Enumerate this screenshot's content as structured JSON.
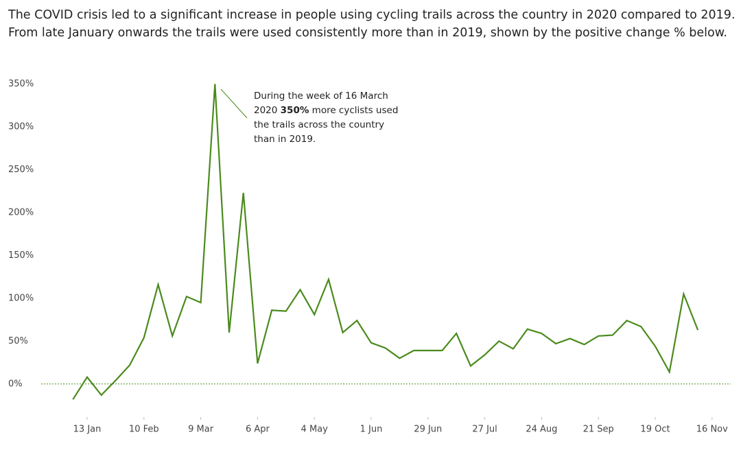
{
  "chart_data": {
    "type": "line",
    "title": "The COVID crisis led to a significant increase in people using cycling trails across the country in 2020 compared to 2019.",
    "subtitle": "From late January onwards the trails were used consistently more than in 2019, shown by the positive change % below.",
    "annotation": [
      "During the week of 16 March",
      "2020",
      "350%",
      "more cyclists used",
      "the trails across the country",
      "than in 2019."
    ],
    "categories": [
      null,
      "13 Jan",
      null,
      null,
      null,
      "10 Feb",
      null,
      null,
      null,
      "9 Mar",
      null,
      null,
      null,
      "6 Apr",
      null,
      null,
      null,
      "4 May",
      null,
      null,
      null,
      "1 Jun",
      null,
      null,
      null,
      "29 Jun",
      null,
      null,
      null,
      "27 Jul",
      null,
      null,
      null,
      "24 Aug",
      null,
      null,
      null,
      "21 Sep",
      null,
      null,
      null,
      "19 Oct",
      null,
      null,
      null,
      "16 Nov"
    ],
    "values": [
      -18,
      8,
      -13,
      4,
      22,
      54,
      116,
      56,
      102,
      95,
      350,
      60,
      223,
      24,
      86,
      85,
      110,
      81,
      122,
      60,
      74,
      48,
      42,
      30,
      39,
      39,
      39,
      59,
      21,
      34,
      50,
      41,
      64,
      59,
      47,
      53,
      46,
      56,
      57,
      74,
      67,
      44,
      14,
      105,
      63,
      null
    ],
    "color": "#4a8a1c",
    "ylim": [
      -25,
      360
    ],
    "yticks": [
      {
        "value": 0,
        "label": "0%"
      },
      {
        "value": 50,
        "label": "50%"
      },
      {
        "value": 100,
        "label": "100%"
      },
      {
        "value": 150,
        "label": "150%"
      },
      {
        "value": 200,
        "label": "200%"
      },
      {
        "value": 250,
        "label": "250%"
      },
      {
        "value": 300,
        "label": "300%"
      },
      {
        "value": 350,
        "label": "350%"
      }
    ]
  }
}
